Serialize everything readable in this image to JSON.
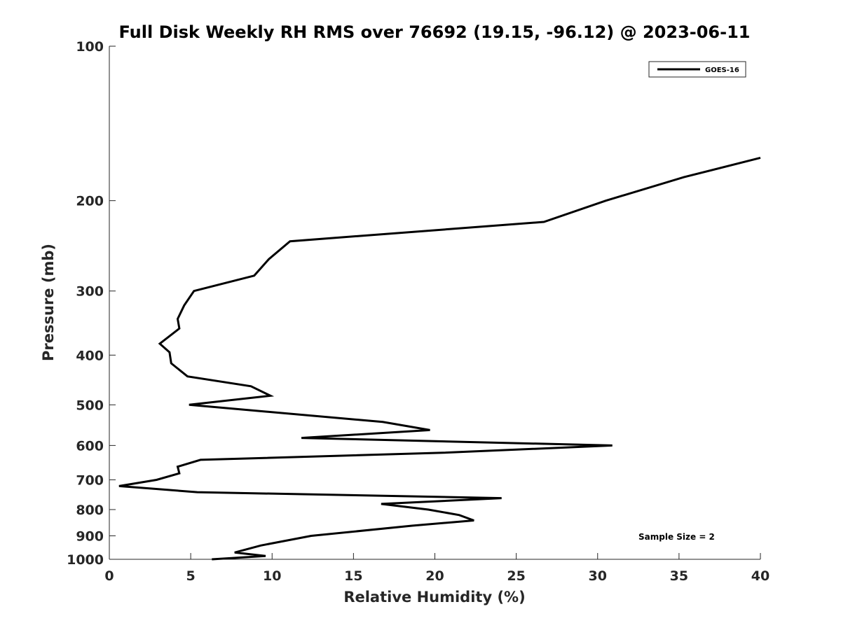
{
  "chart_data": {
    "type": "line",
    "title": "Full Disk Weekly RH RMS over 76692 (19.15, -96.12) @ 2023-06-11",
    "xlabel": "Relative Humidity (%)",
    "ylabel": "Pressure (mb)",
    "xlim": [
      0,
      40
    ],
    "ylim": [
      100,
      1000
    ],
    "yscale": "log",
    "yreversed": true,
    "grid": false,
    "legend_placement": "top-right",
    "x_ticks": [
      0,
      5,
      10,
      15,
      20,
      25,
      30,
      35,
      40
    ],
    "y_ticks": [
      100,
      200,
      300,
      400,
      500,
      600,
      700,
      800,
      900,
      1000
    ],
    "series": [
      {
        "name": "GOES-16",
        "color": "#000000",
        "x": [
          40.0,
          35.3,
          30.5,
          26.7,
          11.1,
          9.8,
          8.9,
          5.2,
          4.6,
          4.2,
          4.3,
          3.1,
          3.7,
          3.8,
          4.8,
          8.7,
          9.9,
          4.9,
          16.8,
          19.7,
          11.8,
          30.9,
          20.5,
          5.6,
          4.2,
          4.3,
          2.9,
          0.6,
          5.4,
          24.1,
          16.7,
          19.6,
          21.5,
          22.4,
          18.6,
          12.4,
          9.3,
          7.7,
          9.6,
          6.3
        ],
        "y": [
          165,
          180,
          200,
          220,
          240,
          260,
          280,
          300,
          320,
          340,
          355,
          380,
          395,
          415,
          440,
          460,
          480,
          500,
          540,
          560,
          580,
          600,
          620,
          640,
          660,
          680,
          700,
          720,
          740,
          760,
          780,
          800,
          820,
          840,
          860,
          900,
          940,
          970,
          985,
          1000
        ]
      }
    ],
    "annotations": [
      "Sample Size = 2"
    ]
  }
}
